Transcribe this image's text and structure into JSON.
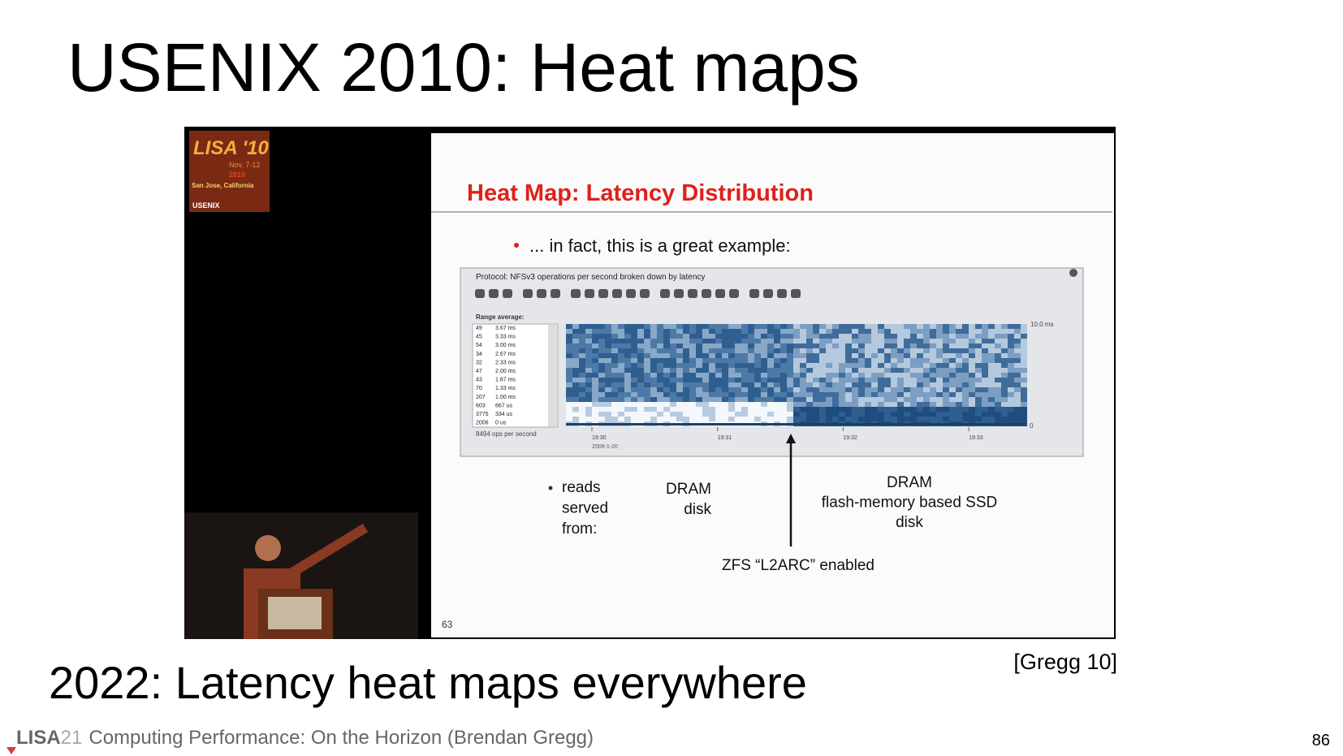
{
  "header": {
    "title": "USENIX 2010: Heat maps"
  },
  "video": {
    "logo": {
      "title": "LISA '10",
      "dates": "Nov. 7-12",
      "year": "2010",
      "place": "San Jose, California",
      "org": "USENIX"
    },
    "slide": {
      "title": "Heat Map: Latency Distribution",
      "bullet": "... in fact, this is a great example:",
      "window": {
        "title": "Protocol: NFSv3 operations per second broken down by latency",
        "range_heading": "Range average:",
        "range_rows": [
          [
            "49",
            "3.67 ms"
          ],
          [
            "45",
            "3.33 ms"
          ],
          [
            "54",
            "3.00 ms"
          ],
          [
            "34",
            "2.67 ms"
          ],
          [
            "32",
            "2.33 ms"
          ],
          [
            "47",
            "2.00 ms"
          ],
          [
            "43",
            "1.67 ms"
          ],
          [
            "70",
            "1.33 ms"
          ],
          [
            "207",
            "1.00 ms"
          ],
          [
            "603",
            "667 us"
          ],
          [
            "3775",
            "334 us"
          ],
          [
            "2006",
            "0 us"
          ]
        ],
        "rate": "8494 ops per second",
        "y_top": "10.0 ms",
        "y_bottom": "0",
        "times": [
          "19:30",
          "19:31",
          "19:32",
          "19:33"
        ],
        "date": "2009-1-20"
      },
      "served": [
        "reads",
        "served",
        "from:"
      ],
      "left_label": [
        "DRAM",
        "disk"
      ],
      "right_label": [
        "DRAM",
        "flash-memory based SSD",
        "disk"
      ],
      "arrow_label": "ZFS “L2ARC” enabled",
      "slide_number": "63"
    }
  },
  "subtitle": "2022: Latency heat maps everywhere",
  "citation": "[Gregg 10]",
  "footer": {
    "brand": "LISA",
    "brand_number": "21",
    "text": "Computing Performance: On the Horizon (Brendan Gregg)",
    "page": "86"
  }
}
